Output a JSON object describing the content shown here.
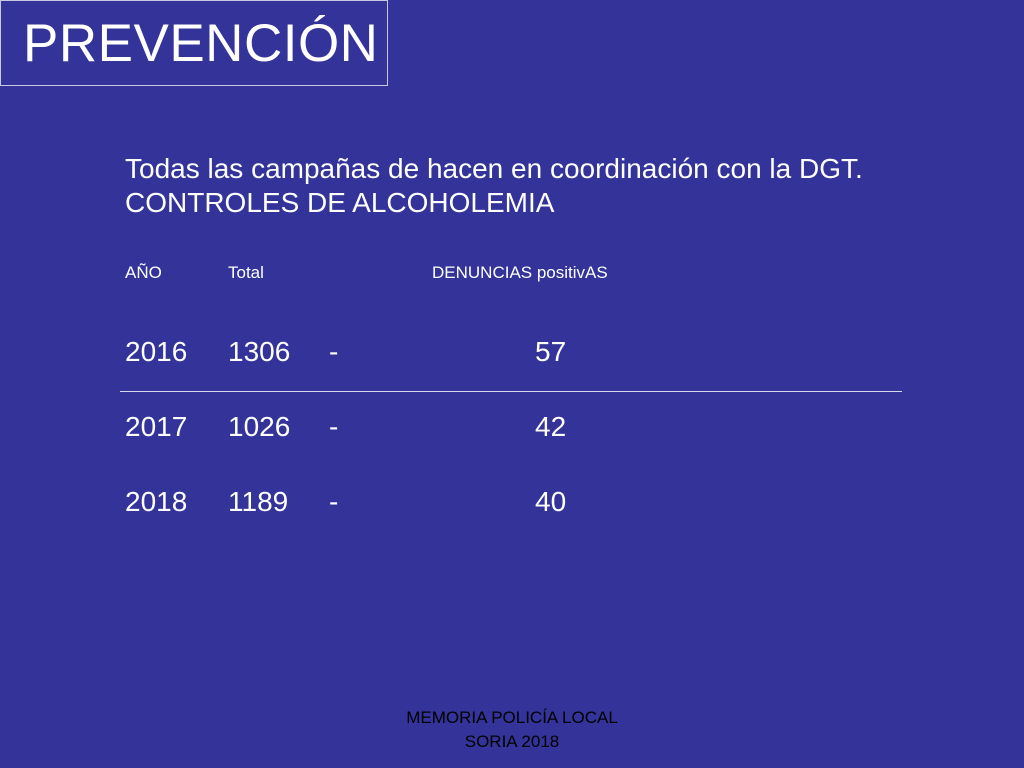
{
  "slide": {
    "title": "PREVENCIÓN",
    "intro_line_1": "Todas las campañas de hacen en coordinación con la DGT.",
    "intro_line_2": "CONTROLES DE ALCOHOLEMIA"
  },
  "table": {
    "headers": {
      "year": "AÑO",
      "total": "Total",
      "positive": "DENUNCIAS positivAS"
    },
    "rows": [
      {
        "year": "2016",
        "total": "1306",
        "sep": "-",
        "positive": "57"
      },
      {
        "year": "2017",
        "total": "1026",
        "sep": "-",
        "positive": "42"
      },
      {
        "year": "2018",
        "total": "1189",
        "sep": "-",
        "positive": "40"
      }
    ]
  },
  "footer": {
    "line_1": "MEMORIA POLICÍA LOCAL",
    "line_2": "SORIA 2018"
  },
  "colors": {
    "background": "#333399",
    "text": "#ffffff",
    "footer_text": "#000000"
  }
}
